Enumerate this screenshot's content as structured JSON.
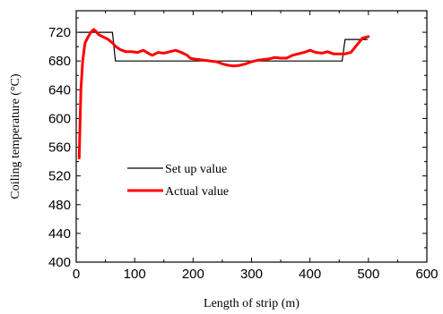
{
  "chart_data": {
    "type": "line",
    "title": "",
    "xlabel": "Length of strip (m)",
    "ylabel": "Coiling temperature (°C)",
    "xlim": [
      0,
      600
    ],
    "ylim": [
      400,
      750
    ],
    "xticks": [
      "0",
      "100",
      "200",
      "300",
      "400",
      "500",
      "600"
    ],
    "yticks": [
      "400",
      "440",
      "480",
      "520",
      "560",
      "600",
      "640",
      "680",
      "720"
    ],
    "grid": false,
    "legend_position": "center-left",
    "series": [
      {
        "name": "Set up value",
        "color": "#000000",
        "x": [
          5,
          62,
          67,
          455,
          460,
          498
        ],
        "y": [
          720,
          720,
          680,
          680,
          710,
          710
        ]
      },
      {
        "name": "Actual value",
        "color": "#ff0000",
        "x": [
          5,
          8,
          11,
          15,
          20,
          25,
          30,
          33,
          38,
          45,
          55,
          62,
          68,
          75,
          85,
          95,
          105,
          115,
          125,
          130,
          140,
          150,
          160,
          170,
          180,
          190,
          195,
          200,
          210,
          220,
          230,
          240,
          250,
          260,
          270,
          280,
          290,
          300,
          310,
          320,
          330,
          340,
          350,
          360,
          370,
          380,
          390,
          400,
          410,
          420,
          430,
          440,
          450,
          460,
          470,
          480,
          490,
          500
        ],
        "y": [
          545,
          640,
          680,
          705,
          713,
          720,
          724,
          722,
          717,
          714,
          710,
          705,
          700,
          696,
          693,
          693,
          692,
          695,
          690,
          688,
          692,
          691,
          693,
          695,
          692,
          688,
          684,
          683,
          682,
          681,
          680,
          679,
          676,
          674,
          673,
          674,
          676,
          679,
          681,
          682,
          683,
          685,
          684,
          684,
          688,
          690,
          692,
          695,
          692,
          691,
          693,
          690,
          690,
          690,
          692,
          702,
          712,
          714
        ]
      }
    ]
  }
}
